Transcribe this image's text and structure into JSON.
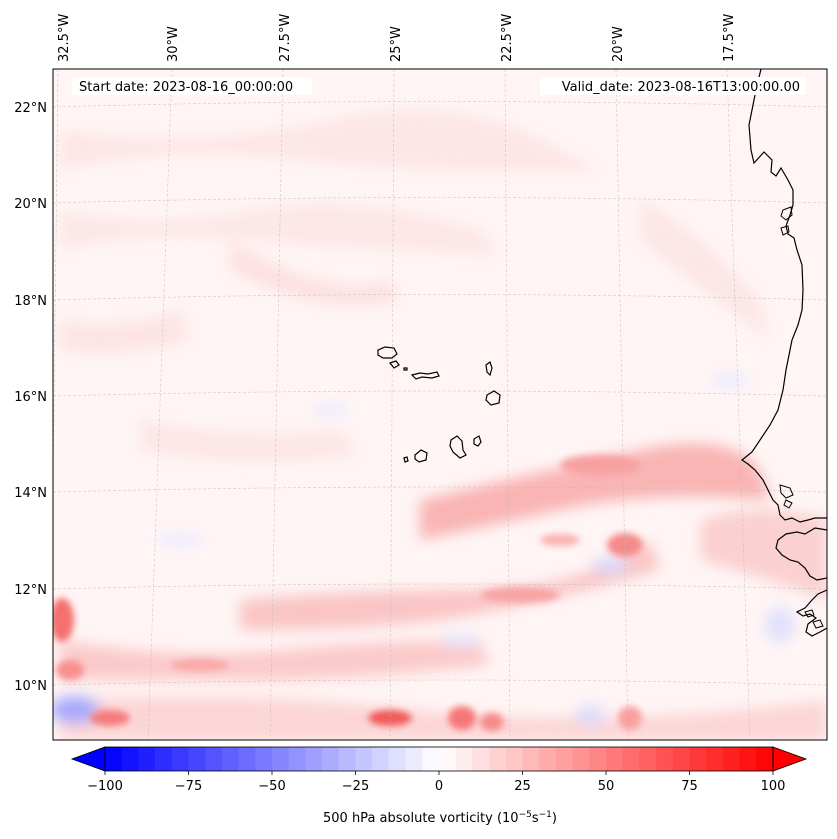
{
  "map": {
    "start_date": "Start date: 2023-08-16_00:00:00",
    "valid_date": "Valid_date: 2023-08-16T13:00:00.00",
    "projection": "lambert-conformal",
    "lon_range": [
      -33.0,
      -15.0
    ],
    "lat_range": [
      9.0,
      22.8
    ],
    "lon_ticks": [
      "32.5°W",
      "30°W",
      "27.5°W",
      "25°W",
      "22.5°W",
      "20°W",
      "17.5°W"
    ],
    "lat_ticks": [
      "22°N",
      "20°N",
      "18°N",
      "16°N",
      "14°N",
      "12°N",
      "10°N"
    ]
  },
  "colorbar": {
    "title": "500 hPa absolute vorticity (10",
    "title_exp1": "−5",
    "title_mid": "s",
    "title_exp2": "−1",
    "title_end": ")",
    "tick_labels": [
      "−100",
      "−75",
      "−50",
      "−25",
      "0",
      "25",
      "50",
      "75",
      "100"
    ],
    "range": [
      -100,
      100
    ],
    "step": 5,
    "colormap": "bwr",
    "extend": "both"
  },
  "chart_data": {
    "type": "heatmap",
    "variable": "500 hPa absolute vorticity",
    "units": "10^-5 s^-1",
    "vmin": -100,
    "vmax": 100,
    "features": [
      {
        "name": "weak background positive vorticity",
        "value": 8
      },
      {
        "name": "positive band ~14.5°N from 21°W eastward",
        "value": 25
      },
      {
        "name": "positive band ~12°N 27°W–18°W",
        "value": 22
      },
      {
        "name": "maximum near 25°W 9.3°N",
        "value": 45
      },
      {
        "name": "maximum near 33°W 11.5°N",
        "value": 40
      },
      {
        "name": "maximum near 20°W 13°N",
        "value": 30
      },
      {
        "name": "negative minimum near 32.5°W 9.5°N",
        "value": -30
      }
    ]
  }
}
